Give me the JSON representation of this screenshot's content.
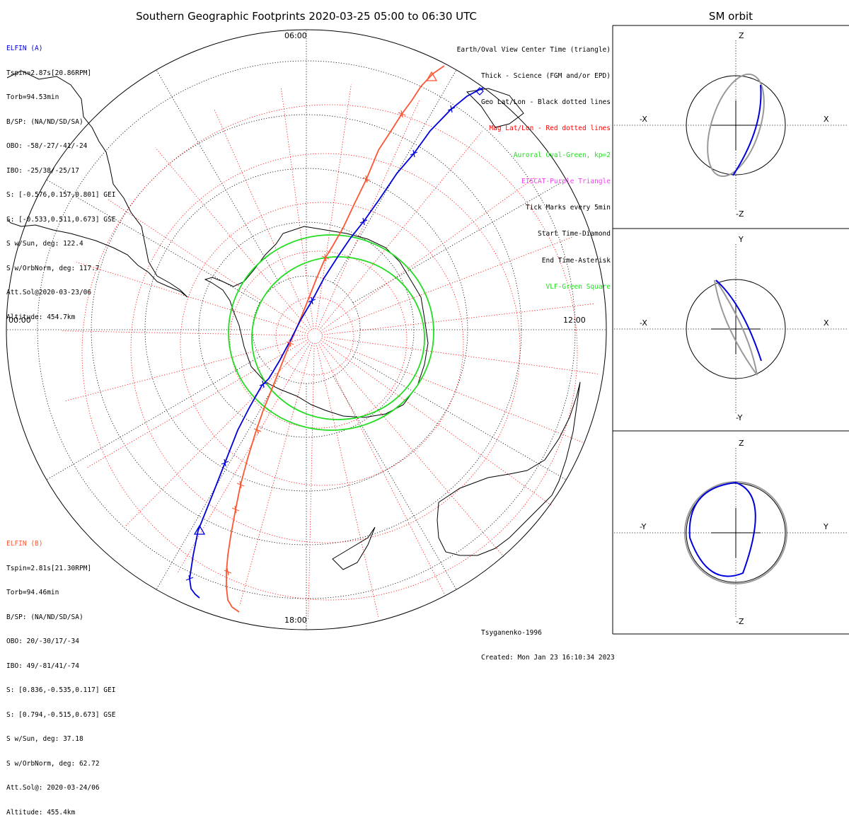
{
  "title": "Southern Geographic Footprints 2020-03-25 05:00 to 06:30 UTC",
  "orbit_title": "SM orbit",
  "colors": {
    "a": "#0000dd",
    "b": "#ff5533",
    "oval": "#22dd22",
    "geo": "#000000",
    "mag": "#ff0000",
    "earth": "#999999"
  },
  "clock": {
    "top": "06:00",
    "left": "00:00",
    "right": "12:00",
    "bottom": "18:00"
  },
  "elfin_a": {
    "name": "ELFIN (A)",
    "lines": [
      "Tspin=2.87s[20.86RPM]",
      "Torb=94.53min",
      "B/SP: (NA/ND/SD/SA)",
      "OBO: -58/-27/-41/-24",
      "IBO: -25/38/-25/17",
      "S: [-0.576,0.157,0.801] GEI",
      "S: [-0.533,0.511,0.673] GSE",
      "S w/Sun, deg: 122.4",
      "S w/OrbNorm, deg: 117.7",
      "Att.Sol@2020-03-23/06",
      "Altitude: 454.7km"
    ]
  },
  "elfin_b": {
    "name": "ELFIN (B)",
    "lines": [
      "Tspin=2.81s[21.30RPM]",
      "Torb=94.46min",
      "B/SP: (NA/ND/SD/SA)",
      "OBO: 20/-30/17/-34",
      "IBO: 49/-81/41/-74",
      "S: [0.836,-0.535,0.117] GEI",
      "S: [0.794,-0.515,0.673] GSE",
      "S w/Sun, deg: 37.18",
      "S w/OrbNorm, deg: 62.72",
      "Att.Sol@: 2020-03-24/06",
      "Altitude: 455.4km"
    ]
  },
  "legend": [
    {
      "text": "Earth/Oval View Center Time (triangle)",
      "color": "#000000"
    },
    {
      "text": "Thick - Science (FGM and/or EPD)",
      "color": "#000000"
    },
    {
      "text": "Geo Lat/Lon - Black dotted lines",
      "color": "#000000"
    },
    {
      "text": "Mag Lat/Lon - Red dotted lines",
      "color": "#ff0000"
    },
    {
      "text": "Auroral Oval-Green, kp=2",
      "color": "#22dd22"
    },
    {
      "text": "EISCAT-Purple Triangle",
      "color": "#ee44ee"
    },
    {
      "text": "Tick Marks every 5min",
      "color": "#000000"
    },
    {
      "text": "Start Time-Diamond",
      "color": "#000000"
    },
    {
      "text": "End Time-Asterisk",
      "color": "#000000"
    },
    {
      "text": "VLF-Green Square",
      "color": "#22dd22"
    }
  ],
  "credits": [
    "Tsyganenko-1996",
    "Created: Mon Jan 23 16:10:34 2023"
  ],
  "orbit_panels": [
    {
      "top": "Z",
      "bottom": "-Z",
      "left": "-X",
      "right": "X"
    },
    {
      "top": "Y",
      "bottom": "-Y",
      "left": "-X",
      "right": "X"
    },
    {
      "top": "Z",
      "bottom": "-Z",
      "left": "-Y",
      "right": "Y"
    }
  ]
}
